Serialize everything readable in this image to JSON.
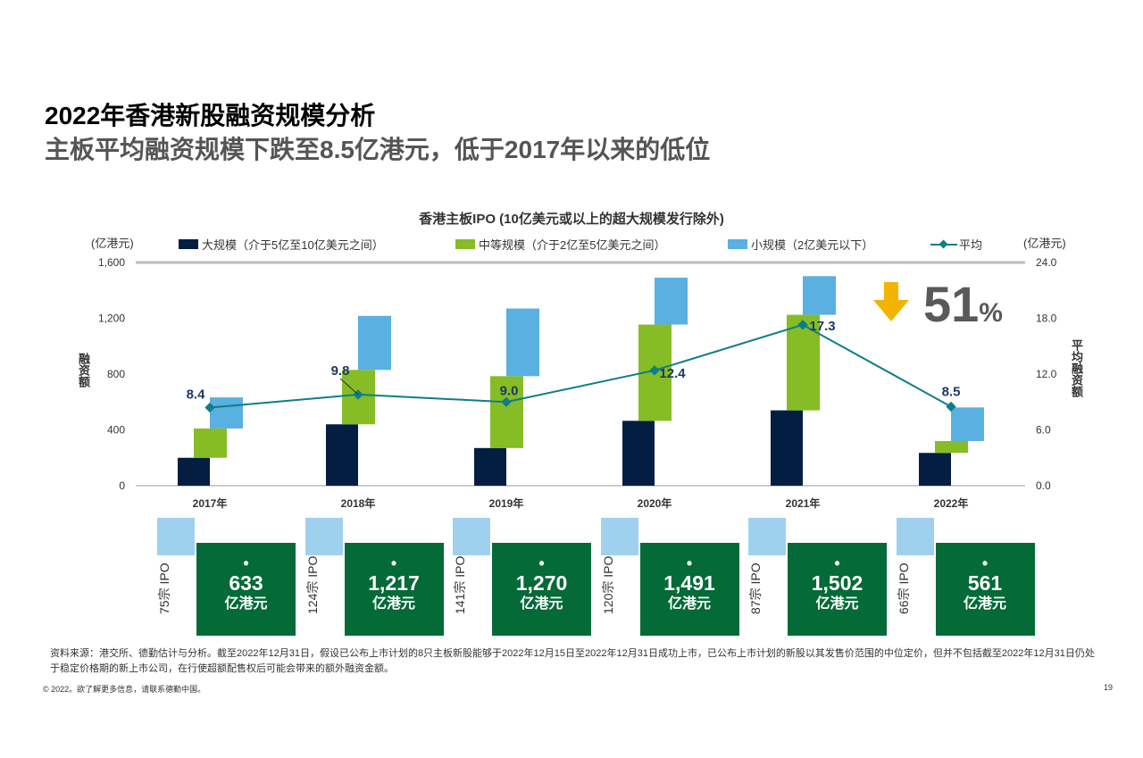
{
  "title": "2022年香港新股融资规模分析",
  "subtitle": "主板平均融资规模下跌至8.5亿港元，低于2017年以来的低位",
  "callout": {
    "value": "51",
    "unit": "%",
    "icon": "arrow-down-icon",
    "color": "#f2b400"
  },
  "chart_data": {
    "type": "bar",
    "title": "香港主板IPO (10亿美元或以上的超大规模发行除外)",
    "left_unit": "(亿港元)",
    "right_unit": "(亿港元)",
    "ylabel": "融资额",
    "y2label": "平均融资额",
    "ylim": [
      0,
      1600
    ],
    "y2lim": [
      0,
      24
    ],
    "yticks": [
      "0",
      "400",
      "800",
      "1,200",
      "1,600"
    ],
    "y2ticks": [
      "0.0",
      "6.0",
      "12.0",
      "18.0",
      "24.0"
    ],
    "categories": [
      "2017年",
      "2018年",
      "2019年",
      "2020年",
      "2021年",
      "2022年"
    ],
    "series": [
      {
        "name": "大规模（介于5亿至10亿美元之间）",
        "color": "#041e42",
        "values": [
          200,
          440,
          270,
          465,
          540,
          235
        ]
      },
      {
        "name": "中等规模（介于2亿至5亿美元之间）",
        "color": "#86bc25",
        "values": [
          210,
          390,
          515,
          690,
          685,
          85
        ]
      },
      {
        "name": "小规模（2亿美元以下）",
        "color": "#5ab0e0",
        "values": [
          223,
          387,
          485,
          336,
          277,
          241
        ]
      },
      {
        "name": "平均",
        "color": "#0f7c8a",
        "type": "line",
        "axis": "right",
        "values": [
          8.4,
          9.8,
          9.0,
          12.4,
          17.3,
          8.5
        ],
        "labels": [
          "8.4",
          "9.8",
          "9.0",
          "12.4",
          "17.3",
          "8.5"
        ]
      }
    ],
    "grid": false,
    "legend": "top"
  },
  "totals": [
    {
      "count": "75宗 IPO",
      "value": "633",
      "unit": "亿港元"
    },
    {
      "count": "124宗 IPO",
      "value": "1,217",
      "unit": "亿港元"
    },
    {
      "count": "141宗 IPO",
      "value": "1,270",
      "unit": "亿港元"
    },
    {
      "count": "120宗 IPO",
      "value": "1,491",
      "unit": "亿港元"
    },
    {
      "count": "87宗 IPO",
      "value": "1,502",
      "unit": "亿港元"
    },
    {
      "count": "66宗 IPO",
      "value": "561",
      "unit": "亿港元"
    }
  ],
  "footnote": "资料来源：港交所、德勤估计与分析。截至2022年12月31日，假设已公布上市计划的8只主板新股能够于2022年12月15日至2022年12月31日成功上市，已公布上市计划的新股以其发售价范围的中位定价，但并不包括截至2022年12月31日仍处于稳定价格期的新上市公司，在行使超额配售权后可能会带来的额外融资金额。",
  "copyright": "© 2022。欲了解更多信息，请联系德勤中国。",
  "page_number": "19"
}
